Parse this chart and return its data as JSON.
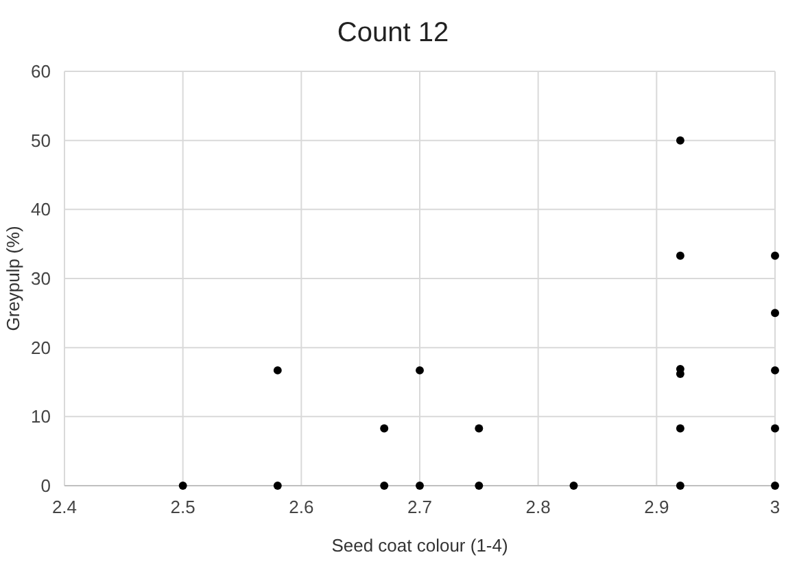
{
  "chart_data": {
    "type": "scatter",
    "title": "Count 12",
    "xlabel": "Seed coat colour (1-4)",
    "ylabel": "Greypulp (%)",
    "x": [
      2.5,
      2.58,
      2.58,
      2.67,
      2.67,
      2.7,
      2.7,
      2.75,
      2.75,
      2.83,
      2.92,
      2.92,
      2.92,
      2.92,
      2.92,
      2.92,
      3,
      3,
      3,
      3,
      3
    ],
    "series": [
      {
        "color": "#000000",
        "values": [
          0,
          0,
          16.7,
          0,
          8.3,
          0,
          16.7,
          0,
          8.3,
          0,
          0,
          8.3,
          16.2,
          16.9,
          33.3,
          50,
          0,
          8.3,
          16.7,
          25,
          33.3
        ]
      }
    ],
    "xlim": [
      2.4,
      3
    ],
    "xticks": [
      {
        "value": 2.4,
        "label": "2.4"
      },
      {
        "value": 2.5,
        "label": "2.5"
      },
      {
        "value": 2.6,
        "label": "2.6"
      },
      {
        "value": 2.7,
        "label": "2.7"
      },
      {
        "value": 2.8,
        "label": "2.8"
      },
      {
        "value": 2.9,
        "label": "2.9"
      },
      {
        "value": 3,
        "label": "3"
      }
    ],
    "ylim": [
      0,
      60
    ],
    "yticks": [
      0,
      10,
      20,
      30,
      40,
      50,
      60
    ],
    "grid": true,
    "marker": "circle"
  }
}
